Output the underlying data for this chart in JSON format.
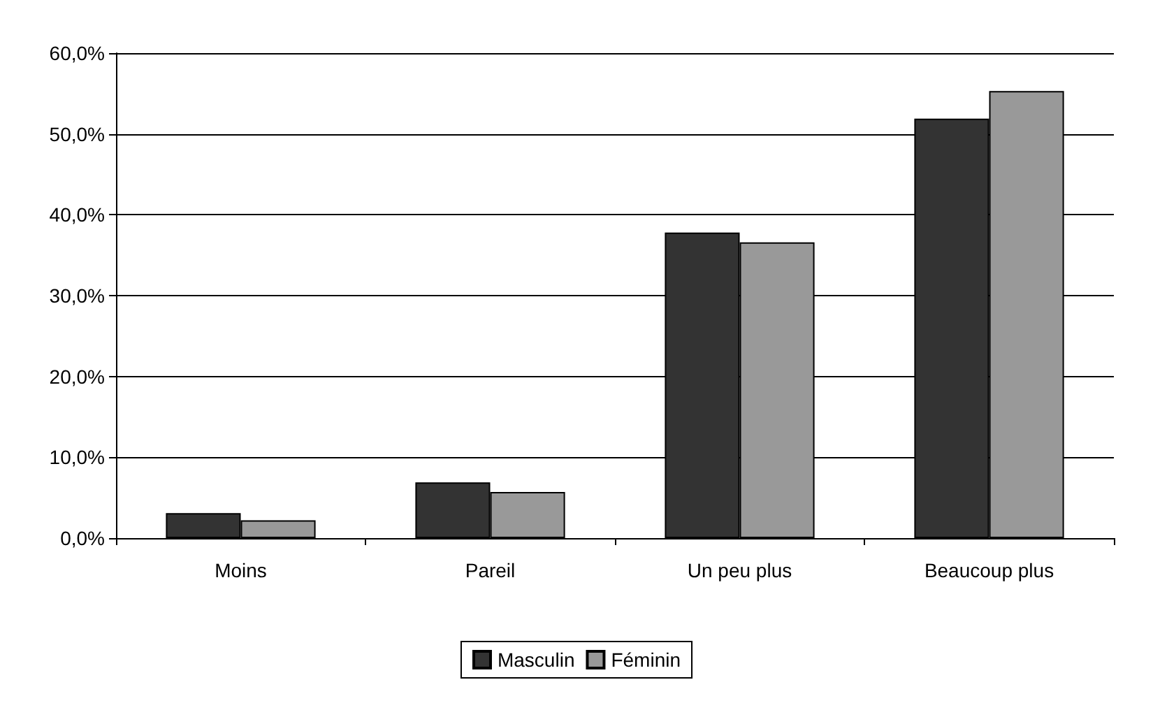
{
  "chart_data": {
    "type": "bar",
    "categories": [
      "Moins",
      "Pareil",
      "Un peu plus",
      "Beaucoup plus"
    ],
    "series": [
      {
        "name": "Masculin",
        "color": "#333333",
        "values": [
          3.1,
          6.9,
          37.8,
          51.9
        ]
      },
      {
        "name": "Féminin",
        "color": "#999999",
        "values": [
          2.2,
          5.7,
          36.6,
          55.3
        ]
      }
    ],
    "ylim": [
      0,
      60
    ],
    "yticks": [
      {
        "value": 0,
        "label": "0,0%"
      },
      {
        "value": 10,
        "label": "10,0%"
      },
      {
        "value": 20,
        "label": "20,0%"
      },
      {
        "value": 30,
        "label": "30,0%"
      },
      {
        "value": 40,
        "label": "40,0%"
      },
      {
        "value": 50,
        "label": "50,0%"
      },
      {
        "value": 60,
        "label": "60,0%"
      }
    ],
    "grid": "y",
    "legend": "bottom"
  }
}
